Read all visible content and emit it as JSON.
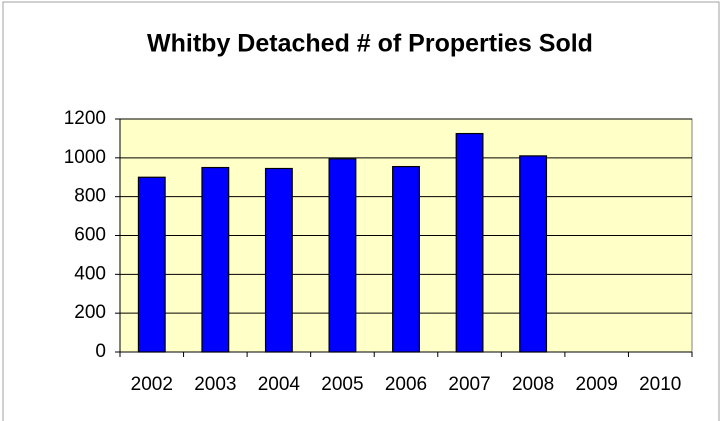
{
  "chart_data": {
    "type": "bar",
    "title": "Whitby Detached # of Properties Sold",
    "categories": [
      "2002",
      "2003",
      "2004",
      "2005",
      "2006",
      "2007",
      "2008",
      "2009",
      "2010"
    ],
    "values": [
      900,
      950,
      945,
      995,
      955,
      1125,
      1010,
      null,
      null
    ],
    "color": "#0000ff",
    "ylim": [
      0,
      1200
    ],
    "yticks": [
      0,
      200,
      400,
      600,
      800,
      1000,
      1200
    ],
    "grid": true
  }
}
